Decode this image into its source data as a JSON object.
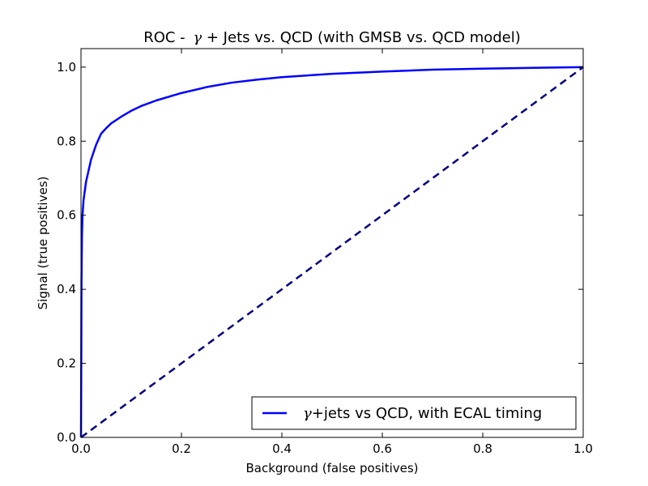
{
  "chart_data": {
    "type": "line",
    "title": {
      "prefix": "ROC - ",
      "symbol": "γ",
      "suffix": " + Jets vs. QCD (with GMSB vs. QCD model)"
    },
    "xlabel": "Background (false positives)",
    "ylabel": "Signal (true positives)",
    "xlim": [
      0.0,
      1.0
    ],
    "ylim": [
      0.0,
      1.05
    ],
    "xticks": [
      0.0,
      0.2,
      0.4,
      0.6,
      0.8,
      1.0
    ],
    "xtick_labels": [
      "0.0",
      "0.2",
      "0.4",
      "0.6",
      "0.8",
      "1.0"
    ],
    "yticks": [
      0.0,
      0.2,
      0.4,
      0.6,
      0.8,
      1.0
    ],
    "ytick_labels": [
      "0.0",
      "0.2",
      "0.4",
      "0.6",
      "0.8",
      "1.0"
    ],
    "grid": false,
    "legend_position": "lower-right",
    "series": [
      {
        "name_symbol": "γ",
        "name_rest": "+jets vs QCD, with ECAL timing",
        "color": "#0000ff",
        "style": "solid",
        "x": [
          0.0,
          0.0005,
          0.001,
          0.002,
          0.003,
          0.005,
          0.007,
          0.01,
          0.015,
          0.02,
          0.03,
          0.04,
          0.05,
          0.06,
          0.07,
          0.08,
          0.1,
          0.12,
          0.15,
          0.2,
          0.25,
          0.3,
          0.35,
          0.4,
          0.5,
          0.6,
          0.7,
          0.8,
          0.9,
          1.0
        ],
        "y": [
          0.0,
          0.2,
          0.42,
          0.55,
          0.6,
          0.64,
          0.66,
          0.69,
          0.72,
          0.75,
          0.79,
          0.82,
          0.835,
          0.848,
          0.857,
          0.866,
          0.882,
          0.895,
          0.91,
          0.93,
          0.946,
          0.958,
          0.966,
          0.973,
          0.982,
          0.988,
          0.993,
          0.996,
          0.998,
          1.0
        ]
      },
      {
        "name_symbol": "",
        "name_rest": "",
        "color": "#000080",
        "style": "dashed",
        "x": [
          0.0,
          1.0
        ],
        "y": [
          0.0,
          1.0
        ]
      }
    ]
  }
}
